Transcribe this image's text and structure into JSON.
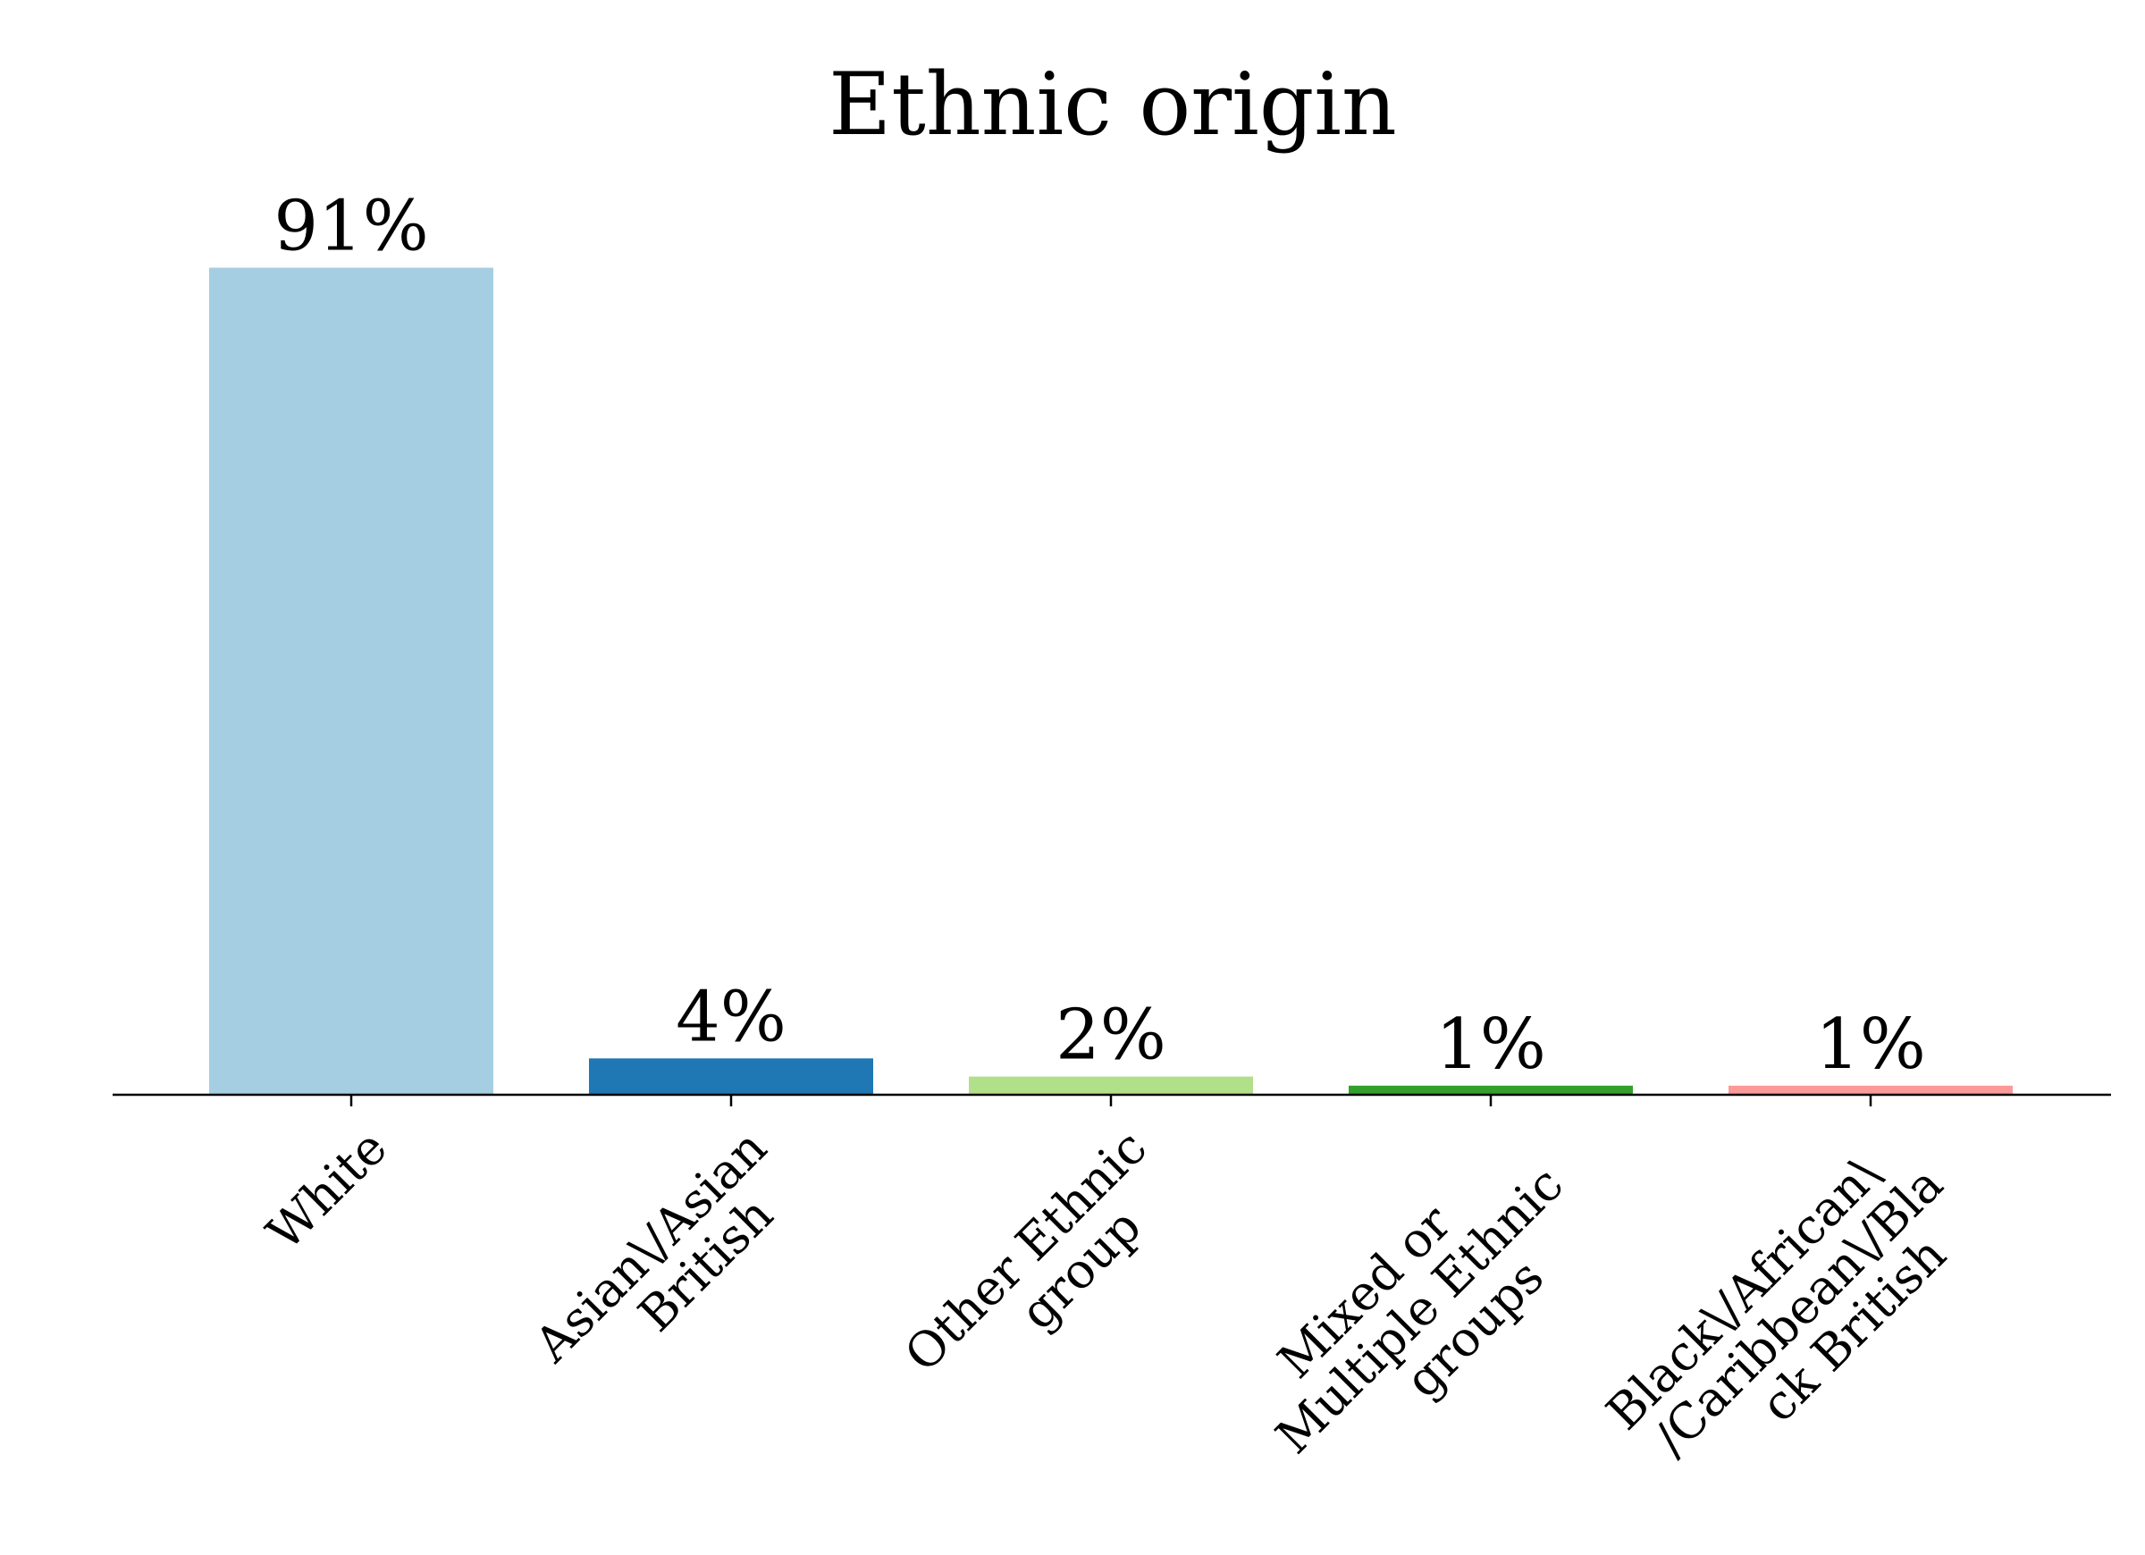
{
  "chart_data": {
    "type": "bar",
    "title": "Ethnic origin",
    "xlabel": "",
    "ylabel": "",
    "ylim": [
      0,
      100
    ],
    "grid": false,
    "categories": [
      "White",
      "Asian\\/Asian British",
      "Other Ethnic group",
      "Mixed or Multiple Ethnic groups",
      "Black\\/African\\/Caribbean\\/Black British"
    ],
    "tick_label_lines": [
      [
        "White"
      ],
      [
        "Asian\\/Asian",
        "British"
      ],
      [
        "Other Ethnic",
        "group"
      ],
      [
        "Mixed or",
        "Multiple Ethnic",
        "groups"
      ],
      [
        "Black\\/African\\",
        "/Caribbean\\/Bla",
        "ck British"
      ]
    ],
    "values": [
      91,
      4,
      2,
      1,
      1
    ],
    "value_labels": [
      "91%",
      "4%",
      "2%",
      "1%",
      "1%"
    ],
    "colors": [
      "#a6cee3",
      "#1f78b4",
      "#b2df8a",
      "#33a02c",
      "#fb9a99"
    ]
  }
}
